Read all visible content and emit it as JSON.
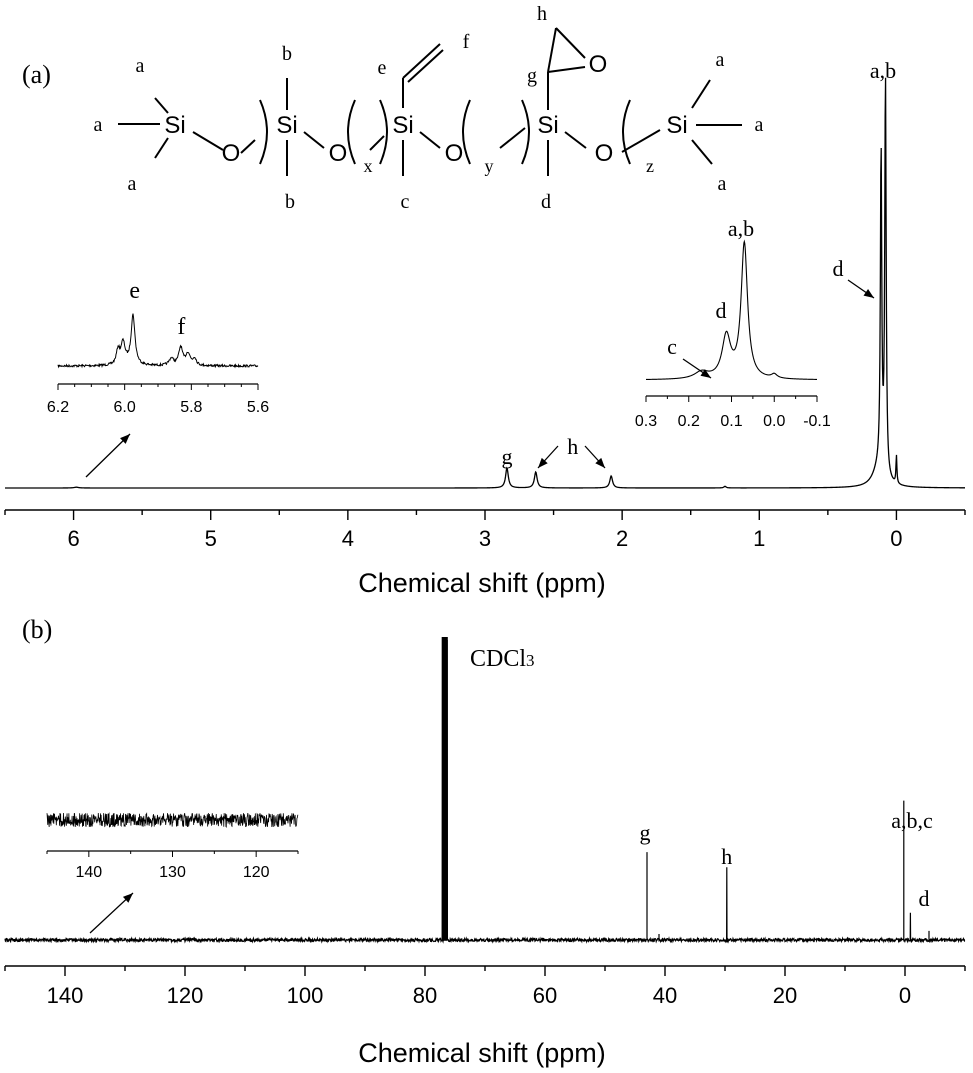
{
  "chart_data": [
    {
      "type": "line",
      "panel_label": "(a)",
      "xlabel": "Chemical shift (ppm)",
      "xlim": [
        6.5,
        -0.5
      ],
      "xticks": [
        6,
        5,
        4,
        3,
        2,
        1,
        0
      ],
      "spectrum": [
        {
          "x": 6.5,
          "y": 0
        },
        {
          "x": 5.98,
          "y": 0.002
        },
        {
          "x": 3.0,
          "y": 0
        },
        {
          "x": 2.84,
          "y": 0.05
        },
        {
          "x": 2.63,
          "y": 0.04
        },
        {
          "x": 2.08,
          "y": 0.03
        },
        {
          "x": 1.25,
          "y": 0.004
        },
        {
          "x": 0.12,
          "y": 0.78
        },
        {
          "x": 0.1,
          "y": 0.85
        },
        {
          "x": 0.08,
          "y": 1.0
        },
        {
          "x": 0.0,
          "y": 0.07
        },
        {
          "x": -0.5,
          "y": 0
        }
      ],
      "peak_labels": [
        {
          "text": "g",
          "x": 2.84
        },
        {
          "text": "h",
          "x": 2.36
        },
        {
          "text": "d",
          "x": 0.12
        },
        {
          "text": "a,b",
          "x": 0.08
        }
      ],
      "insets": [
        {
          "name": "vinyl-region",
          "xlim": [
            6.2,
            5.6
          ],
          "xticks": [
            "6.2",
            "6.0",
            "5.8",
            "5.6"
          ],
          "peak_labels": [
            {
              "text": "e",
              "x": 5.97
            },
            {
              "text": "f",
              "x": 5.83
            }
          ]
        },
        {
          "name": "methyl-region",
          "xlim": [
            0.3,
            -0.1
          ],
          "xticks": [
            "0.3",
            "0.2",
            "0.1",
            "0.0",
            "-0.1"
          ],
          "peak_labels": [
            {
              "text": "c",
              "x": 0.17
            },
            {
              "text": "d",
              "x": 0.11
            },
            {
              "text": "a,b",
              "x": 0.07
            }
          ]
        }
      ],
      "structure": {
        "atoms": [
          "Si",
          "O",
          "Si",
          "O",
          "Si",
          "O",
          "Si",
          "O",
          "Si"
        ],
        "substituents": [
          "a",
          "a",
          "a",
          "b",
          "b",
          "c",
          "e",
          "f",
          "d",
          "g",
          "h",
          "O",
          "a",
          "a",
          "a"
        ],
        "subscripts": [
          "x",
          "y",
          "z"
        ]
      }
    },
    {
      "type": "line",
      "panel_label": "(b)",
      "xlabel": "Chemical shift (ppm)",
      "xlim": [
        150,
        -10
      ],
      "xticks": [
        140,
        120,
        100,
        80,
        60,
        40,
        20,
        0
      ],
      "spectrum": [
        {
          "x": 150,
          "y": 0
        },
        {
          "x": 77,
          "y": 1.0
        },
        {
          "x": 76.6,
          "y": 1.0
        },
        {
          "x": 43,
          "y": 0.29
        },
        {
          "x": 41,
          "y": 0.02
        },
        {
          "x": 29.7,
          "y": 0.24
        },
        {
          "x": 0.2,
          "y": 0.46
        },
        {
          "x": -0.9,
          "y": 0.09
        },
        {
          "x": -4,
          "y": 0.03
        },
        {
          "x": -10,
          "y": 0
        }
      ],
      "peak_labels": [
        {
          "text": "CDCl",
          "sub": "3",
          "x": 77
        },
        {
          "text": "g",
          "x": 43
        },
        {
          "text": "h",
          "x": 29.7
        },
        {
          "text": "a,b,c",
          "x": 0.2
        },
        {
          "text": "d",
          "x": -0.9
        }
      ],
      "insets": [
        {
          "name": "noise-region",
          "xlim": [
            145,
            115
          ],
          "xticks": [
            "140",
            "130",
            "120"
          ]
        }
      ]
    }
  ]
}
